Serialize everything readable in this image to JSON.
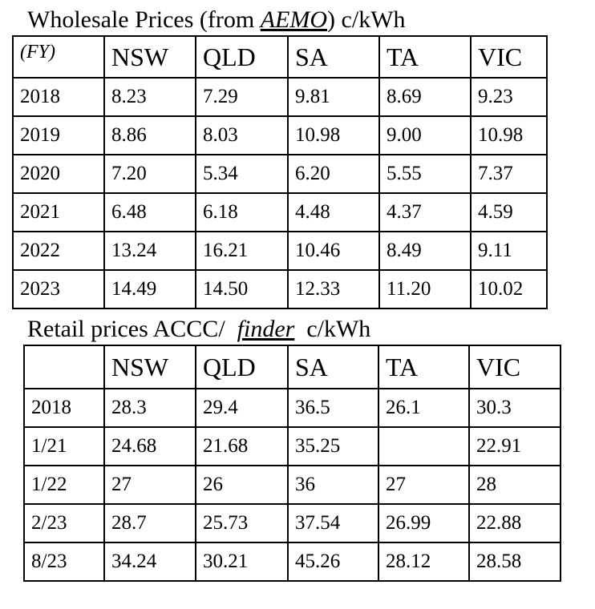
{
  "wholesale": {
    "title_prefix": "Wholesale Prices (from ",
    "title_source": "AEMO",
    "title_suffix": ") c/kWh",
    "corner_label": "(FY)",
    "columns": [
      "NSW",
      "QLD",
      "SA",
      "TA",
      "VIC"
    ],
    "rows": [
      {
        "label": "2018",
        "values": [
          "8.23",
          "7.29",
          "9.81",
          "8.69",
          "9.23"
        ]
      },
      {
        "label": "2019",
        "values": [
          "8.86",
          "8.03",
          "10.98",
          "9.00",
          "10.98"
        ]
      },
      {
        "label": "2020",
        "values": [
          "7.20",
          "5.34",
          "6.20",
          "5.55",
          "7.37"
        ]
      },
      {
        "label": "2021",
        "values": [
          "6.48",
          "6.18",
          "4.48",
          "4.37",
          "4.59"
        ]
      },
      {
        "label": "2022",
        "values": [
          "13.24",
          "16.21",
          "10.46",
          "8.49",
          "9.11"
        ]
      },
      {
        "label": "2023",
        "values": [
          "14.49",
          "14.50",
          "12.33",
          "11.20",
          "10.02"
        ]
      }
    ]
  },
  "retail": {
    "title_prefix": "Retail prices ACCC/  ",
    "title_source": "finder",
    "title_suffix": "  c/kWh",
    "corner_label": "",
    "columns": [
      "NSW",
      "QLD",
      "SA",
      "TA",
      "VIC"
    ],
    "rows": [
      {
        "label": "2018",
        "values": [
          "28.3",
          "29.4",
          "36.5",
          "26.1",
          "30.3"
        ]
      },
      {
        "label": "1/21",
        "values": [
          "24.68",
          "21.68",
          "35.25",
          "",
          "22.91"
        ]
      },
      {
        "label": "1/22",
        "values": [
          "27",
          "26",
          "36",
          "27",
          "28"
        ]
      },
      {
        "label": "2/23",
        "values": [
          "28.7",
          "25.73",
          "37.54",
          "26.99",
          "22.88"
        ]
      },
      {
        "label": "8/23",
        "values": [
          "34.24",
          "30.21",
          "45.26",
          "28.12",
          "28.58"
        ]
      }
    ]
  }
}
